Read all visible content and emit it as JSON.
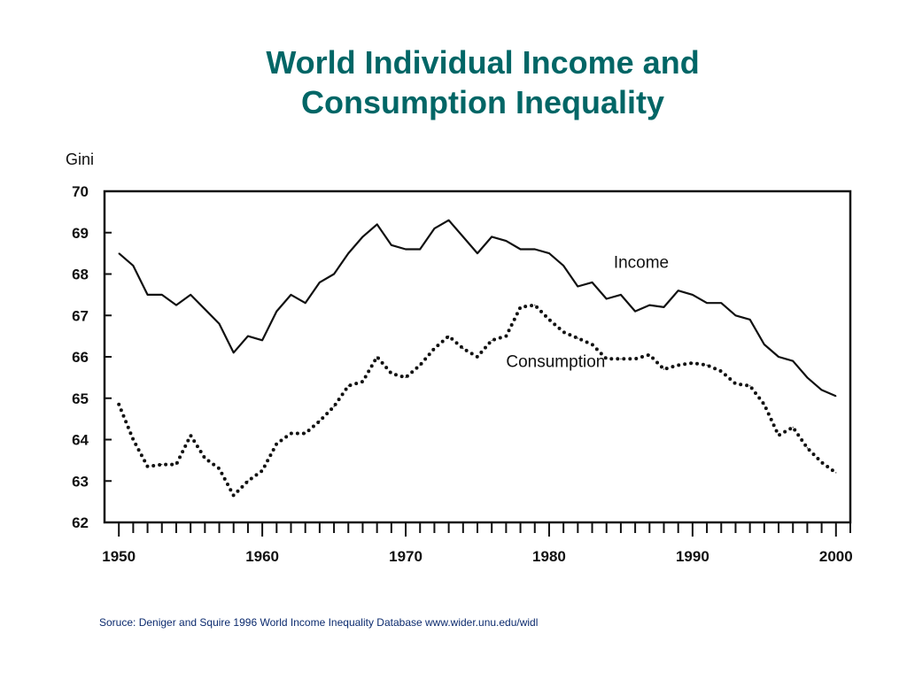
{
  "title": {
    "line1": "World Individual Income and",
    "line2": "Consumption Inequality"
  },
  "source": "Soruce: Deniger and Squire 1996 World Income Inequality Database www.wider.unu.edu/widl",
  "colors": {
    "title": "#006666",
    "source": "#0b2a6e",
    "lines": "#111111"
  },
  "chart_data": {
    "type": "line",
    "title": "",
    "xlabel": "",
    "ylabel": "Gini",
    "xlim": [
      1949,
      2001
    ],
    "ylim": [
      62,
      70
    ],
    "x_ticks": [
      1950,
      1960,
      1970,
      1980,
      1990,
      2000
    ],
    "y_ticks": [
      62,
      63,
      64,
      65,
      66,
      67,
      68,
      69,
      70
    ],
    "grid": false,
    "legend": "none (series labelled inline)",
    "x": [
      1950,
      1951,
      1952,
      1953,
      1954,
      1955,
      1956,
      1957,
      1958,
      1959,
      1960,
      1961,
      1962,
      1963,
      1964,
      1965,
      1966,
      1967,
      1968,
      1969,
      1970,
      1971,
      1972,
      1973,
      1974,
      1975,
      1976,
      1977,
      1978,
      1979,
      1980,
      1981,
      1982,
      1983,
      1984,
      1985,
      1986,
      1987,
      1988,
      1989,
      1990,
      1991,
      1992,
      1993,
      1994,
      1995,
      1996,
      1997,
      1998,
      1999,
      2000
    ],
    "series": [
      {
        "name": "Income",
        "style": "solid",
        "values": [
          68.5,
          68.2,
          67.5,
          67.5,
          67.25,
          67.5,
          67.15,
          66.8,
          66.1,
          66.5,
          66.4,
          67.1,
          67.5,
          67.3,
          67.8,
          68.0,
          68.5,
          68.9,
          69.2,
          68.7,
          68.6,
          68.6,
          69.1,
          69.3,
          68.9,
          68.5,
          68.9,
          68.8,
          68.6,
          68.6,
          68.5,
          68.2,
          67.7,
          67.8,
          67.4,
          67.5,
          67.1,
          67.25,
          67.2,
          67.6,
          67.5,
          67.3,
          67.3,
          67.0,
          66.9,
          66.3,
          66.0,
          65.9,
          65.5,
          65.2,
          65.05
        ]
      },
      {
        "name": "Consumption",
        "style": "dotted",
        "values": [
          64.85,
          64.0,
          63.35,
          63.4,
          63.4,
          64.1,
          63.55,
          63.3,
          62.65,
          63.0,
          63.25,
          63.9,
          64.15,
          64.15,
          64.45,
          64.8,
          65.3,
          65.4,
          66.0,
          65.6,
          65.5,
          65.8,
          66.2,
          66.5,
          66.2,
          66.0,
          66.4,
          66.5,
          67.2,
          67.25,
          66.9,
          66.6,
          66.45,
          66.3,
          65.95,
          65.95,
          65.95,
          66.05,
          65.7,
          65.8,
          65.85,
          65.8,
          65.65,
          65.35,
          65.3,
          64.85,
          64.1,
          64.3,
          63.8,
          63.45,
          63.2
        ]
      }
    ],
    "annotations": [
      {
        "text": "Income",
        "x": 1984.5,
        "y": 68.15
      },
      {
        "text": "Consumption",
        "x": 1977,
        "y": 65.75
      }
    ]
  }
}
